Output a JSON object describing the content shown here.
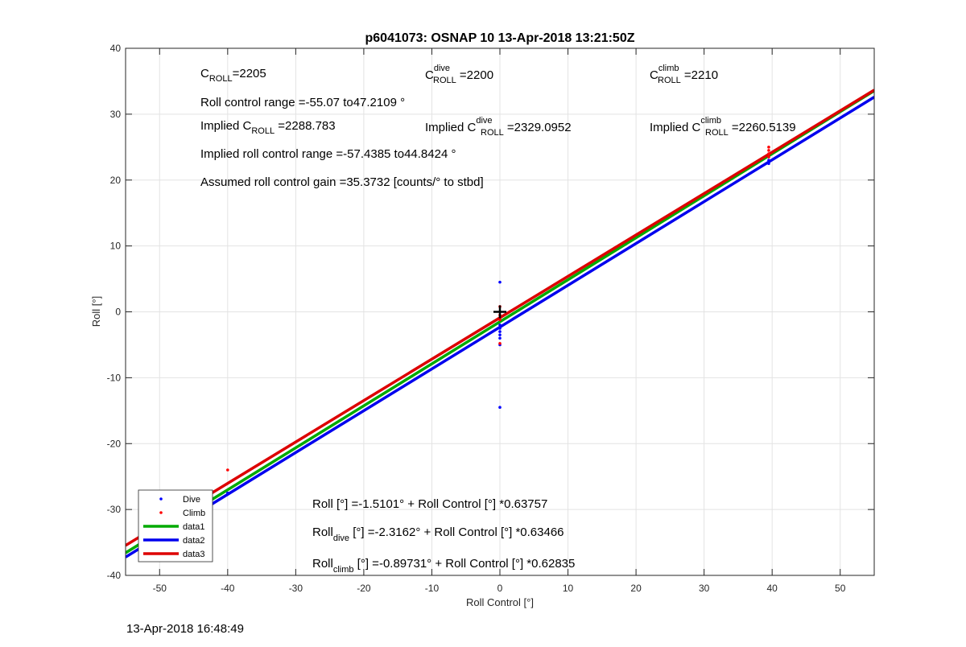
{
  "chart_data": {
    "type": "scatter",
    "title": "p6041073: OSNAP 10 13-Apr-2018 13:21:50Z",
    "xlabel": "Roll Control [°]",
    "ylabel": "Roll [°]",
    "xlim": [
      -55,
      55
    ],
    "ylim": [
      -40,
      40
    ],
    "xticks": [
      -50,
      -40,
      -30,
      -20,
      -10,
      0,
      10,
      20,
      30,
      40,
      50
    ],
    "yticks": [
      -40,
      -30,
      -20,
      -10,
      0,
      10,
      20,
      30,
      40
    ],
    "grid": true,
    "legend_position": "bottom-left",
    "series": [
      {
        "name": "Dive",
        "kind": "points",
        "color": "#0000ff",
        "points": [
          [
            0,
            4.5
          ],
          [
            0,
            -14.5
          ],
          [
            0,
            -5
          ],
          [
            0,
            -4
          ],
          [
            0,
            -3.5
          ],
          [
            0,
            -3
          ],
          [
            0,
            -2.5
          ],
          [
            0,
            -2
          ],
          [
            39.5,
            23
          ],
          [
            39.5,
            22.5
          ],
          [
            -40,
            -27.5
          ]
        ]
      },
      {
        "name": "Climb",
        "kind": "points",
        "color": "#ff0000",
        "points": [
          [
            0,
            0.8
          ],
          [
            0,
            -0.5
          ],
          [
            0,
            -1.2
          ],
          [
            0,
            -4.8
          ],
          [
            39.5,
            25
          ],
          [
            39.5,
            24.5
          ],
          [
            39.5,
            24
          ],
          [
            39.5,
            23.5
          ],
          [
            -40,
            -24
          ]
        ]
      },
      {
        "name": "data1",
        "kind": "line",
        "color": "#00aa00",
        "intercept": -1.5101,
        "slope": 0.63757
      },
      {
        "name": "data2",
        "kind": "line",
        "color": "#0000ee",
        "intercept": -2.3162,
        "slope": 0.63466
      },
      {
        "name": "data3",
        "kind": "line",
        "color": "#dd0000",
        "intercept": -0.89731,
        "slope": 0.62835
      }
    ],
    "marker": {
      "x": 0,
      "y": 0,
      "symbol": "+"
    },
    "annotations": {
      "c_roll": {
        "main": "C",
        "sub": "ROLL",
        "rest": "=2205"
      },
      "c_roll_dive": {
        "main": "C",
        "sup": "dive",
        "sub": "ROLL",
        "rest": " =2200"
      },
      "c_roll_climb": {
        "main": "C",
        "sup": "climb",
        "sub": "ROLL",
        "rest": " =2210"
      },
      "roll_range": "Roll control range =-55.07 to47.2109 °",
      "implied_c_roll": {
        "pre": "Implied C",
        "sub": "ROLL",
        "rest": " =2288.783"
      },
      "implied_c_roll_dive": {
        "pre": "Implied C",
        "sup": "dive",
        "sub": "ROLL",
        "rest": " =2329.0952"
      },
      "implied_c_roll_climb": {
        "pre": "Implied C",
        "sup": "climb",
        "sub": "ROLL",
        "rest": " =2260.5139"
      },
      "implied_range": "Implied roll control range =-57.4385 to44.8424 °",
      "gain": "Assumed roll control gain =35.3732 [counts/° to stbd]",
      "fit_all": "Roll [°] =-1.5101° + Roll Control [°] *0.63757",
      "fit_dive": {
        "pre": "Roll",
        "sub": "dive",
        "rest": " [°] =-2.3162° + Roll Control [°] *0.63466"
      },
      "fit_climb": {
        "pre": "Roll",
        "sub": "climb",
        "rest": " [°] =-0.89731° + Roll Control [°] *0.62835"
      }
    }
  },
  "footer": {
    "timestamp": "13-Apr-2018 16:48:49"
  }
}
